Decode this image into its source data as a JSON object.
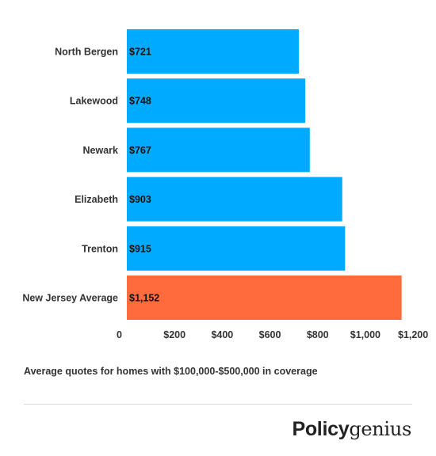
{
  "chart_data": {
    "type": "bar",
    "orientation": "horizontal",
    "categories": [
      "North Bergen",
      "Lakewood",
      "Newark",
      "Elizabeth",
      "Trenton",
      "New Jersey Average"
    ],
    "values": [
      721,
      748,
      767,
      903,
      915,
      1152
    ],
    "value_labels": [
      "$721",
      "$748",
      "$767",
      "$903",
      "$915",
      "$1,152"
    ],
    "colors": [
      "#00aaff",
      "#00aaff",
      "#00aaff",
      "#00aaff",
      "#00aaff",
      "#ff6b3d"
    ],
    "xlim": [
      0,
      1200
    ],
    "x_ticks": [
      0,
      200,
      400,
      600,
      800,
      1000,
      1200
    ],
    "x_tick_labels": [
      "0",
      "$200",
      "$400",
      "$600",
      "$800",
      "$1,000",
      "$1,200"
    ],
    "grid": false,
    "legend": "none"
  },
  "caption": "Average quotes for homes with $100,000-$500,000 in coverage",
  "brand": {
    "part1": "Policy",
    "part2": "genius"
  }
}
